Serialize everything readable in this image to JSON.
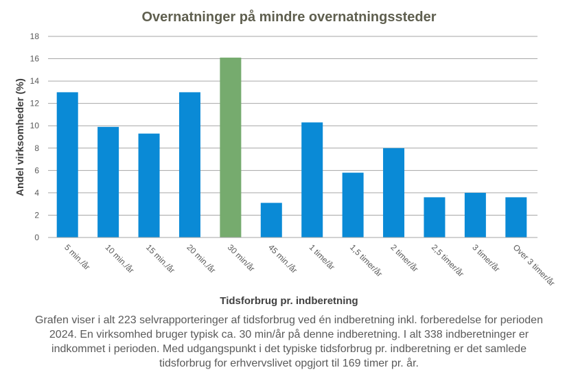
{
  "chart_data": {
    "type": "bar",
    "title": "Overnatninger på mindre overnatningssteder",
    "xlabel": "Tidsforbrug pr. indberetning",
    "ylabel": "Andel virksomheder  (%)",
    "categories": [
      "5 min./år",
      "10 min./år",
      "15 min./år",
      "20 min./år",
      "30 min/år",
      "45 min./år",
      "1 time/år",
      "1,5 timer/år",
      "2 timer/år",
      "2,5 timer/år",
      "3 timer/år",
      "Over 3 timer/år"
    ],
    "values": [
      13.0,
      9.9,
      9.3,
      13.0,
      16.1,
      3.1,
      10.3,
      5.8,
      8.0,
      3.6,
      4.0,
      3.6
    ],
    "highlight_index": 4,
    "ylim": [
      0,
      18
    ],
    "yticks": [
      0,
      2,
      4,
      6,
      8,
      10,
      12,
      14,
      16,
      18
    ],
    "grid": true,
    "colors": {
      "bar": "#0a8ad6",
      "highlight": "#76ab6e",
      "grid": "#a6a6a6"
    }
  },
  "caption": "Grafen viser i alt 223 selvrapporteringer  af tidsforbrug ved én indberetning inkl. forberedelse for perioden 2024. En virksomhed bruger typisk ca. 30 min/år på denne indberetning.  I alt 338 indberetninger er indkommet i perioden. Med udgangspunkt i det typiske tidsforbrug pr. indberetning  er det samlede tidsforbrug for erhvervslivet opgjort til 169 timer pr. år."
}
